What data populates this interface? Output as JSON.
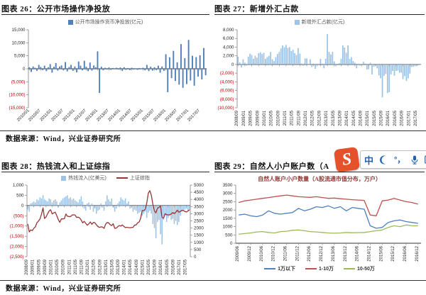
{
  "panels": {
    "p26": {
      "title": "图表 26：公开市场操作净投放"
    },
    "p27": {
      "title": "图表 27：新增外汇占款"
    },
    "p28": {
      "title": "图表 28：热钱流入和上证综指"
    },
    "p29": {
      "title": "图表 29：自然人小户账户数（A",
      "subtitle": "自然人账户小户数量（A股流通市值分布，万户）"
    }
  },
  "sources": {
    "row1": "数据来源：Wind，兴业证券研究所",
    "row2": "数据来源：Wind，兴业证券研究所"
  },
  "watermark": {
    "logo_letter": "S",
    "logo_color": "#e4512b",
    "icon_color": "#1f62ad",
    "chinese_mode_label": "中",
    "punctuation_label": "°，"
  },
  "colors": {
    "bar_dark_blue": "#4f81bd",
    "bar_light_blue": "#9dc3e6",
    "line_dark_red": "#953735",
    "line_red": "#c0504d",
    "line_green": "#9bbb59",
    "negative_tick": "#c00000"
  },
  "chart_data": [
    {
      "id": "c26",
      "type": "bar",
      "legend": [
        {
          "label": "公开市场操作货币净投放(亿元)",
          "color": "#4f81bd",
          "shape": "rect"
        }
      ],
      "y_left": {
        "min": -15000,
        "max": 15000,
        "step": 5000,
        "comma": true
      },
      "xangle": -45,
      "xtick_every": 6,
      "xticks": [
        "2010/01",
        "2010/07",
        "2011/01",
        "2011/07",
        "2012/01",
        "2012/07",
        "2013/01",
        "2013/07",
        "2014/01",
        "2014/07",
        "2015/01",
        "2015/07",
        "2016/01",
        "2016/07",
        "2017/01",
        "2017/07"
      ],
      "series": [
        {
          "name": "公开市场操作货币净投放(亿元)",
          "type": "bar",
          "axis": "left",
          "color": "#4f81bd",
          "values": [
            600,
            -1200,
            900,
            400,
            -800,
            1500,
            700,
            -500,
            1200,
            -900,
            600,
            1800,
            -1500,
            800,
            2200,
            -700,
            900,
            1300,
            -600,
            2600,
            -1000,
            700,
            1500,
            -800,
            900,
            -1400,
            2800,
            1200,
            -600,
            3100,
            800,
            -900,
            2400,
            -700,
            1300,
            600,
            6700,
            -9300,
            800,
            -600,
            400,
            -300,
            500,
            -400,
            300,
            -200,
            400,
            -300,
            500,
            -800,
            600,
            -400,
            300,
            -500,
            400,
            -300,
            200,
            -400,
            300,
            -200,
            400,
            -600,
            1500,
            -900,
            800,
            -700,
            600,
            -500,
            1200,
            -1500,
            900,
            -800,
            5600,
            -9000,
            4400,
            -3600,
            6900,
            -4700,
            2500,
            -6100,
            9500,
            -7300,
            4100,
            -5900,
            11100,
            -4500,
            5000,
            -6500,
            4500,
            -3000,
            5200,
            -4100,
            8000,
            -2500
          ]
        }
      ]
    },
    {
      "id": "c27",
      "type": "bar",
      "legend": [
        {
          "label": "新增外汇占款(亿元)",
          "color": "#9dc3e6",
          "shape": "rect"
        }
      ],
      "y_left": {
        "min": -10000,
        "max": 8000,
        "step": 2000,
        "comma": true
      },
      "xangle": -90,
      "xtick_every": 4,
      "xticks": [
        "2008/09",
        "2009/01",
        "2009/05",
        "2009/09",
        "2010/01",
        "2010/05",
        "2010/09",
        "2011/01",
        "2011/05",
        "2011/09",
        "2012/01",
        "2012/05",
        "2012/09",
        "2013/01",
        "2013/05",
        "2013/09",
        "2014/01",
        "2014/05",
        "2014/09",
        "2015/01",
        "2015/05",
        "2015/09",
        "2016/01",
        "2016/05",
        "2016/09",
        "2017/01",
        "2017/05"
      ],
      "series": [
        {
          "name": "新增外汇占款(亿元)",
          "type": "bar",
          "axis": "left",
          "color": "#9dc3e6",
          "values": [
            1800,
            500,
            -700,
            1200,
            400,
            -300,
            1800,
            2500,
            2200,
            1300,
            2000,
            1600,
            2600,
            2800,
            2400,
            2700,
            1300,
            1700,
            2000,
            2900,
            1200,
            800,
            1700,
            2400,
            2900,
            3700,
            4400,
            4000,
            4500,
            3800,
            4000,
            3100,
            3400,
            2600,
            2200,
            3800,
            2500,
            200,
            -300,
            1400,
            1400,
            -100,
            1200,
            -600,
            200,
            -1000,
            -400,
            -200,
            1300,
            200,
            -900,
            1300,
            7000,
            2900,
            2300,
            2900,
            700,
            -400,
            -200,
            300,
            1300,
            4400,
            3900,
            2700,
            4400,
            1300,
            1700,
            800,
            400,
            -900,
            -200,
            -300,
            100,
            600,
            200,
            -1200,
            -1100,
            400,
            -2300,
            -500,
            -300,
            -900,
            -2500,
            -3200,
            -7600,
            -2600,
            -2200,
            -6600,
            -6400,
            -2300,
            -1500,
            -2600,
            -1500,
            -1400,
            -1900,
            -1900,
            -3400,
            -2700,
            -3800,
            -3200,
            -2100,
            -600,
            -500,
            -400,
            -300,
            -200,
            -100
          ]
        }
      ]
    },
    {
      "id": "c28",
      "type": "combo",
      "legend": [
        {
          "label": "热钱流入(亿美元)",
          "color": "#9dc3e6",
          "shape": "rect"
        },
        {
          "label": "上证综指",
          "color": "#953735",
          "shape": "line"
        }
      ],
      "y_left": {
        "min": -2500,
        "max": 1000,
        "step": 500,
        "comma": true
      },
      "y_right": {
        "min": 0,
        "max": 5000,
        "step": 500,
        "comma": false
      },
      "xangle": -90,
      "xtick_every": 4,
      "xticks": [
        "2008/09",
        "2009/01",
        "2009/05",
        "2009/09",
        "2010/01",
        "2010/05",
        "2010/09",
        "2011/01",
        "2011/05",
        "2011/09",
        "2012/01",
        "2012/05",
        "2012/09",
        "2013/01",
        "2013/05",
        "2013/09",
        "2014/01",
        "2014/05",
        "2014/09",
        "2015/01",
        "2015/05",
        "2015/09",
        "2016/01",
        "2016/05",
        "2016/09",
        "2017/01",
        "2017/05"
      ],
      "series": [
        {
          "name": "热钱流入(亿美元)",
          "type": "bar",
          "axis": "left",
          "color": "#9dc3e6",
          "values": [
            -200,
            -300,
            100,
            150,
            200,
            150,
            300,
            250,
            400,
            350,
            500,
            300,
            250,
            200,
            350,
            300,
            150,
            250,
            300,
            200,
            -100,
            150,
            250,
            350,
            400,
            450,
            500,
            350,
            400,
            300,
            350,
            250,
            200,
            150,
            300,
            450,
            200,
            -150,
            -250,
            100,
            150,
            -200,
            100,
            -300,
            -150,
            -400,
            -250,
            -200,
            100,
            -100,
            -250,
            200,
            500,
            300,
            200,
            350,
            -100,
            -300,
            -150,
            100,
            200,
            400,
            300,
            250,
            350,
            100,
            200,
            -150,
            -100,
            -300,
            -200,
            -250,
            -400,
            -350,
            -300,
            -500,
            -400,
            -300,
            -600,
            -350,
            -250,
            -400,
            -900,
            -1100,
            -1600,
            -800,
            -700,
            -1400,
            -1900,
            -700,
            -500,
            -800,
            -600,
            -500,
            -700,
            -650,
            -900,
            -750,
            -950,
            -800,
            -500,
            -300,
            -250,
            -200,
            -150,
            -250,
            -200
          ]
        },
        {
          "name": "上证综指",
          "type": "line",
          "axis": "right",
          "color": "#953735",
          "values": [
            2294,
            1729,
            1871,
            1821,
            1991,
            2083,
            2373,
            2478,
            2633,
            2959,
            3412,
            2668,
            2779,
            2995,
            3195,
            3277,
            2989,
            3052,
            3109,
            2871,
            2592,
            2398,
            2638,
            2639,
            2656,
            2979,
            2820,
            2808,
            2790,
            2905,
            2928,
            2911,
            2743,
            2762,
            2701,
            2567,
            2359,
            2468,
            2333,
            2199,
            2293,
            2428,
            2262,
            2396,
            2372,
            2225,
            2103,
            2047,
            2086,
            2068,
            1980,
            2269,
            2385,
            2365,
            2237,
            2177,
            2301,
            1979,
            1994,
            2098,
            2175,
            2141,
            2220,
            2116,
            2033,
            2056,
            2033,
            2026,
            2039,
            2048,
            2201,
            2217,
            2364,
            2420,
            2683,
            3235,
            3210,
            3310,
            3748,
            4442,
            4612,
            4277,
            3664,
            3206,
            3053,
            3383,
            3445,
            3539,
            2738,
            2688,
            3004,
            2938,
            2917,
            2930,
            2979,
            3085,
            3005,
            3100,
            3250,
            3104,
            3159,
            3242,
            3223,
            3155,
            3117,
            3192,
            3273
          ]
        }
      ]
    },
    {
      "id": "c29",
      "type": "line",
      "legend": [
        {
          "label": "1万以下",
          "color": "#4f81bd",
          "shape": "line"
        },
        {
          "label": "1-10万",
          "color": "#c0504d",
          "shape": "line"
        },
        {
          "label": "10-50万",
          "color": "#9bbb59",
          "shape": "line"
        }
      ],
      "y_left": {
        "min": 0,
        "max": 3500,
        "step": 500,
        "comma": false
      },
      "xangle": -90,
      "xtick_every": 2,
      "xticks": [
        "2009/06",
        "2009/12",
        "2010/06",
        "2010/12",
        "2011/06",
        "2011/12",
        "2012/06",
        "2012/12",
        "2013/06",
        "2013/12",
        "2014/06",
        "2014/12",
        "2015/06",
        "2015/12",
        "2016/06",
        "2016/12"
      ],
      "series": [
        {
          "name": "1万以下",
          "type": "line",
          "axis": "left",
          "color": "#4f81bd",
          "values": [
            1700,
            1750,
            1650,
            1600,
            1700,
            1950,
            1800,
            1750,
            1800,
            1850,
            2100,
            1950,
            2050,
            2200,
            2150,
            2250,
            2100,
            2200,
            1950,
            2150,
            2100,
            2050,
            1050,
            900,
            950,
            1250,
            1350,
            1400,
            1300,
            1250,
            1200
          ]
        },
        {
          "name": "1-10万",
          "type": "line",
          "axis": "left",
          "color": "#c0504d",
          "values": [
            2450,
            2550,
            2600,
            2650,
            2700,
            2750,
            2800,
            2850,
            2900,
            2850,
            2800,
            2780,
            2760,
            2800,
            2750,
            2700,
            2720,
            2680,
            2650,
            2620,
            2600,
            2580,
            1700,
            1650,
            2550,
            2600,
            2700,
            2600,
            2500,
            2450,
            2350
          ]
        },
        {
          "name": "10-50万",
          "type": "line",
          "axis": "left",
          "color": "#9bbb59",
          "values": [
            550,
            580,
            620,
            680,
            700,
            650,
            620,
            700,
            720,
            780,
            800,
            750,
            700,
            680,
            650,
            620,
            600,
            620,
            650,
            630,
            640,
            650,
            700,
            750,
            800,
            950,
            1050,
            1000,
            1100,
            1050,
            1050
          ]
        }
      ]
    }
  ]
}
